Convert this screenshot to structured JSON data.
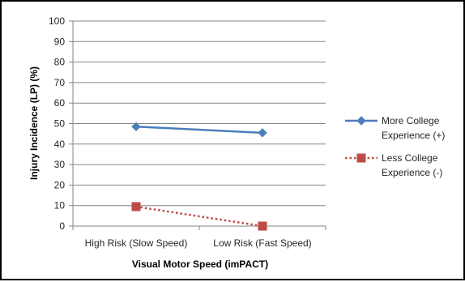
{
  "chart_data": {
    "type": "line",
    "categories": [
      "High Risk (Slow Speed)",
      "Low Risk (Fast Speed)"
    ],
    "xlabel": "Visual Motor Speed (imPACT)",
    "ylabel": "Injury Incidence (LP) (%)",
    "ylim": [
      0,
      100
    ],
    "yticks": [
      0,
      10,
      20,
      30,
      40,
      50,
      60,
      70,
      80,
      90,
      100
    ],
    "grid": true,
    "legend_position": "right",
    "series": [
      {
        "name": "More College Experience (+)",
        "legend_lines": [
          "More College",
          "Experience (+)"
        ],
        "values": [
          48.5,
          45.5
        ],
        "color": "#4a7ebb",
        "line_style": "solid",
        "marker": "diamond"
      },
      {
        "name": "Less College Experience (-)",
        "legend_lines": [
          "Less College",
          "Experience (-)"
        ],
        "values": [
          9.5,
          0
        ],
        "color": "#be4b48",
        "line_style": "dotted",
        "marker": "square"
      }
    ]
  }
}
